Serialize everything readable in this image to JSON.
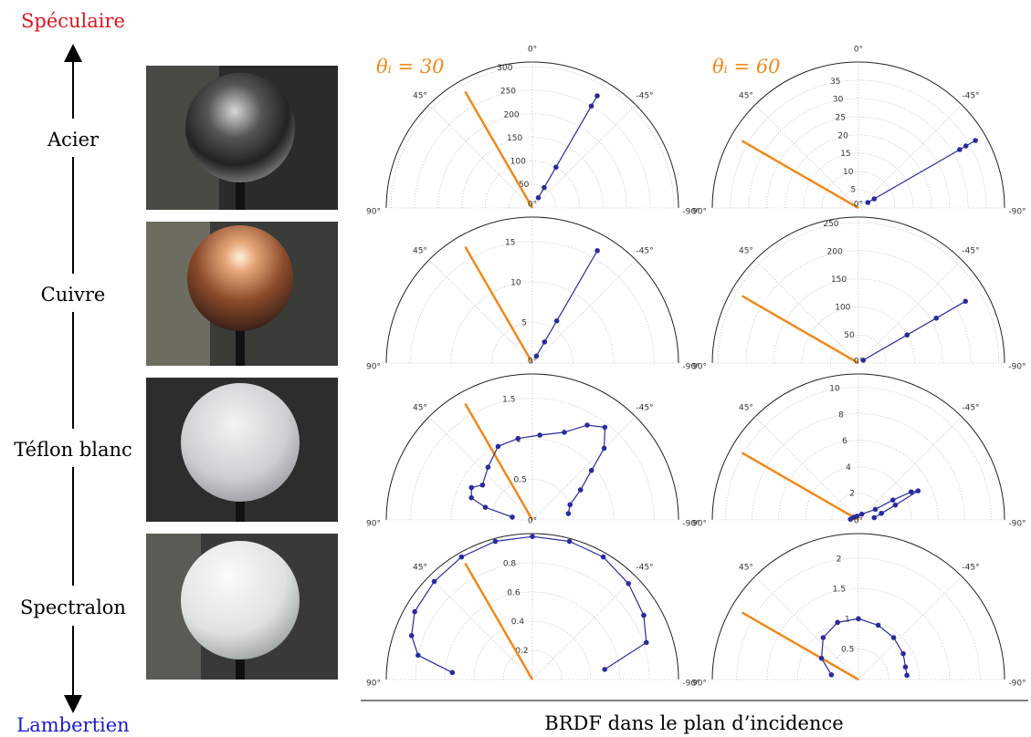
{
  "figure": {
    "scale_top": "Spéculaire",
    "scale_bottom": "Lambertien",
    "materials": [
      "Acier",
      "Cuivre",
      "Téflon blanc",
      "Spectralon"
    ],
    "columns": [
      "θᵢ = 30",
      "θᵢ = 60"
    ],
    "caption": "BRDF dans le plan d’incidence"
  },
  "chart_data": [
    {
      "type": "polar",
      "incident_angle": 30,
      "incident_color": "#f0891c",
      "rlim": [
        0,
        310
      ],
      "rticks": [
        50,
        100,
        150,
        200,
        250,
        300
      ],
      "thetaticks": [
        {
          "value": 0,
          "label": "0°"
        },
        {
          "value": 45,
          "label": "45°"
        },
        {
          "value": -45,
          "label": "-45°"
        },
        {
          "value": 90,
          "label": "90°"
        },
        {
          "value": -90,
          "label": "-90°"
        }
      ],
      "series": [
        {
          "color": "#2a2aa0",
          "theta": [
            -30,
            -30,
            -30,
            -30,
            -30
          ],
          "r": [
            25,
            50,
            100,
            250,
            275
          ]
        }
      ]
    },
    {
      "type": "polar",
      "incident_angle": 60,
      "incident_color": "#f0891c",
      "rlim": [
        0,
        40
      ],
      "rticks": [
        5,
        10,
        15,
        20,
        25,
        30,
        35
      ],
      "thetaticks": [
        {
          "value": 0,
          "label": "0°"
        },
        {
          "value": 45,
          "label": "45°"
        },
        {
          "value": -45,
          "label": "-45°"
        },
        {
          "value": 90,
          "label": "90°"
        },
        {
          "value": -90,
          "label": "-90°"
        }
      ],
      "series": [
        {
          "color": "#2a2aa0",
          "theta": [
            -60,
            -60,
            -60,
            -60,
            -60
          ],
          "r": [
            3,
            5,
            32,
            34,
            37
          ]
        }
      ]
    },
    {
      "type": "polar",
      "incident_angle": 30,
      "incident_color": "#f0891c",
      "rlim": [
        0,
        18
      ],
      "rticks": [
        5,
        10,
        15
      ],
      "thetaticks": [
        {
          "value": 0,
          "label": "0°"
        },
        {
          "value": 45,
          "label": "45°"
        },
        {
          "value": -45,
          "label": "-45°"
        },
        {
          "value": 90,
          "label": "90°"
        },
        {
          "value": -90,
          "label": "-90°"
        }
      ],
      "series": [
        {
          "color": "#2a2aa0",
          "theta": [
            -30,
            -30,
            -30,
            -30
          ],
          "r": [
            1,
            3,
            6,
            16
          ]
        }
      ]
    },
    {
      "type": "polar",
      "incident_angle": 60,
      "incident_color": "#f0891c",
      "rlim": [
        0,
        260
      ],
      "rticks": [
        50,
        100,
        150,
        200,
        250
      ],
      "thetaticks": [
        {
          "value": 0,
          "label": "0°"
        },
        {
          "value": 45,
          "label": "45°"
        },
        {
          "value": -45,
          "label": "-45°"
        },
        {
          "value": 90,
          "label": "90°"
        },
        {
          "value": -90,
          "label": "-90°"
        }
      ],
      "series": [
        {
          "color": "#2a2aa0",
          "theta": [
            -60,
            -60,
            -60,
            -60
          ],
          "r": [
            10,
            100,
            160,
            220
          ]
        }
      ]
    },
    {
      "type": "polar",
      "incident_angle": 30,
      "incident_color": "#f0891c",
      "rlim": [
        0,
        1.8
      ],
      "rticks": [
        0.5,
        1.0,
        1.5
      ],
      "thetaticks": [
        {
          "value": 0,
          "label": "0°"
        },
        {
          "value": 45,
          "label": "45°"
        },
        {
          "value": -45,
          "label": "-45°"
        },
        {
          "value": 90,
          "label": "90°"
        },
        {
          "value": -90,
          "label": "-90°"
        }
      ],
      "series": [
        {
          "color": "#2a2aa0",
          "theta": [
            82,
            75,
            70,
            62,
            55,
            40,
            25,
            10,
            -5,
            -20,
            -30,
            -38,
            -45,
            -50,
            -58,
            -68,
            -80
          ],
          "r": [
            0.25,
            0.6,
            0.8,
            0.85,
            0.75,
            0.85,
            1.0,
            1.02,
            1.05,
            1.15,
            1.35,
            1.45,
            1.25,
            0.95,
            0.7,
            0.5,
            0.45
          ]
        }
      ]
    },
    {
      "type": "polar",
      "incident_angle": 60,
      "incident_color": "#f0891c",
      "rlim": [
        0,
        11
      ],
      "rticks": [
        2,
        4,
        6,
        8,
        10
      ],
      "thetaticks": [
        {
          "value": 0,
          "label": "0°"
        },
        {
          "value": 45,
          "label": "45°"
        },
        {
          "value": -45,
          "label": "-45°"
        },
        {
          "value": 90,
          "label": "90°"
        },
        {
          "value": -90,
          "label": "-90°"
        }
      ],
      "series": [
        {
          "color": "#2a2aa0",
          "theta": [
            85,
            60,
            20,
            -30,
            -58,
            -60,
            -62,
            -64,
            -68,
            -74,
            -82
          ],
          "r": [
            0.6,
            0.4,
            0.3,
            0.5,
            1.5,
            3,
            4.5,
            5,
            3,
            1.8,
            1.2
          ]
        }
      ]
    },
    {
      "type": "polar",
      "incident_angle": 30,
      "incident_color": "#f0891c",
      "rlim": [
        0,
        1.0
      ],
      "rticks": [
        0.2,
        0.4,
        0.6,
        0.8
      ],
      "thetaticks": [
        {
          "value": 0,
          "label": "0°"
        },
        {
          "value": 45,
          "label": "45°"
        },
        {
          "value": -45,
          "label": "-45°"
        },
        {
          "value": 90,
          "label": "90°"
        },
        {
          "value": -90,
          "label": "-90°"
        }
      ],
      "series": [
        {
          "color": "#2a2aa0",
          "theta": [
            85,
            78,
            70,
            60,
            45,
            30,
            15,
            0,
            -15,
            -30,
            -45,
            -60,
            -72,
            -82
          ],
          "r": [
            0.55,
            0.8,
            0.88,
            0.93,
            0.95,
            0.97,
            0.98,
            0.98,
            0.98,
            0.97,
            0.93,
            0.88,
            0.82,
            0.5
          ]
        }
      ]
    },
    {
      "type": "polar",
      "incident_angle": 60,
      "incident_color": "#f0891c",
      "rlim": [
        0,
        2.4
      ],
      "rticks": [
        0.5,
        1.0,
        1.5,
        2.0
      ],
      "thetaticks": [
        {
          "value": 0,
          "label": "0°"
        },
        {
          "value": 45,
          "label": "45°"
        },
        {
          "value": -45,
          "label": "-45°"
        },
        {
          "value": 90,
          "label": "90°"
        },
        {
          "value": -90,
          "label": "-90°"
        }
      ],
      "series": [
        {
          "color": "#2a2aa0",
          "theta": [
            80,
            60,
            40,
            20,
            0,
            -20,
            -40,
            -60,
            -75,
            -85
          ],
          "r": [
            0.45,
            0.7,
            0.9,
            1.0,
            1.0,
            0.95,
            0.9,
            0.85,
            0.8,
            0.8
          ]
        }
      ]
    }
  ]
}
